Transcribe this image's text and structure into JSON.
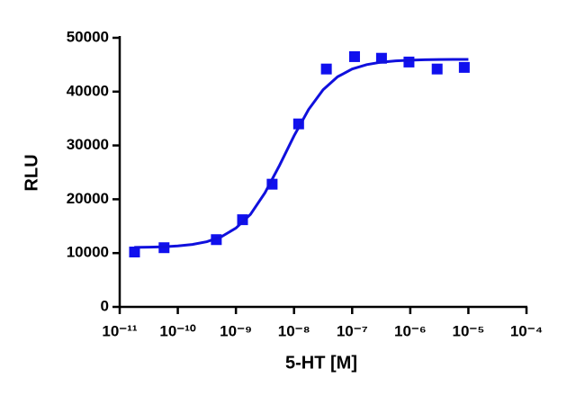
{
  "chart_data": {
    "type": "scatter",
    "x_label": "5-HT [M]",
    "y_label": "RLU",
    "xscale": "log",
    "xlim": [
      1e-11,
      0.0001
    ],
    "xticks": [
      {
        "value": 1e-11,
        "label": "10⁻¹¹"
      },
      {
        "value": 1e-10,
        "label": "10⁻¹⁰"
      },
      {
        "value": 1e-09,
        "label": "10⁻⁹"
      },
      {
        "value": 1e-08,
        "label": "10⁻⁸"
      },
      {
        "value": 1e-07,
        "label": "10⁻⁷"
      },
      {
        "value": 1e-06,
        "label": "10⁻⁶"
      },
      {
        "value": 1e-05,
        "label": "10⁻⁵"
      },
      {
        "value": 0.0001,
        "label": "10⁻⁴"
      }
    ],
    "ylim": [
      0,
      50000
    ],
    "yticks": [
      0,
      10000,
      20000,
      30000,
      40000,
      50000
    ],
    "series": [
      {
        "style": "markers",
        "color": "#1010ee",
        "x": [
          1.8e-11,
          5.8e-11,
          4.6e-10,
          1.3e-09,
          4.2e-09,
          1.2e-08,
          3.6e-08,
          1.1e-07,
          3.2e-07,
          9.5e-07,
          2.9e-06,
          8.5e-06
        ],
        "values": [
          10200,
          11000,
          12500,
          16200,
          22800,
          34000,
          44200,
          46500,
          46200,
          45500,
          44200,
          44500
        ]
      },
      {
        "style": "line",
        "color": "#1010dd",
        "x": [
          1.78e-11,
          3.16e-11,
          5.62e-11,
          1e-10,
          1.78e-10,
          3.16e-10,
          5.62e-10,
          1e-09,
          1.78e-09,
          3.16e-09,
          5.62e-09,
          1e-08,
          1.78e-08,
          3.16e-08,
          5.62e-08,
          1e-07,
          1.78e-07,
          3.16e-07,
          5.62e-07,
          1e-06,
          1.78e-06,
          3.16e-06,
          5.62e-06,
          1e-05
        ],
        "values": [
          11048,
          11091,
          11171,
          11321,
          11600,
          12109,
          13035,
          14642,
          17198,
          21204,
          26284,
          31784,
          36678,
          40338,
          42760,
          44197,
          45020,
          45473,
          45718,
          45850,
          45920,
          45958,
          45978,
          45988
        ]
      }
    ]
  }
}
